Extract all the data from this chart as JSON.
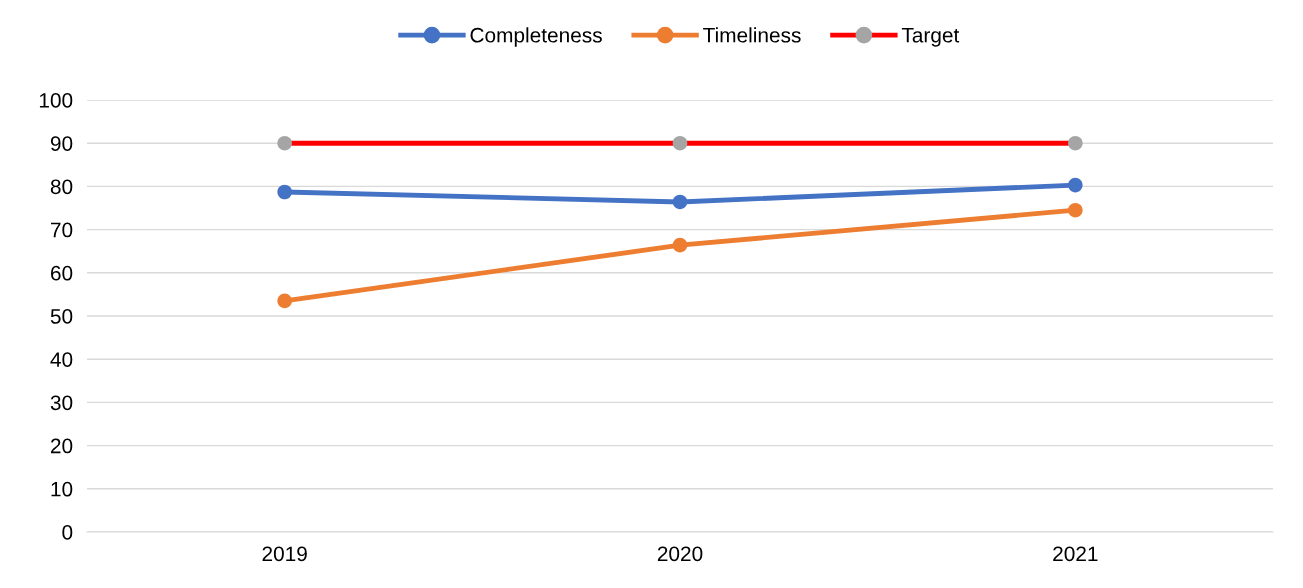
{
  "chart_data": {
    "type": "line",
    "categories": [
      "2019",
      "2020",
      "2021"
    ],
    "series": [
      {
        "name": "Completeness",
        "color": "#4472c4",
        "values": [
          78.7,
          76.4,
          80.3
        ]
      },
      {
        "name": "Timeliness",
        "color": "#ed7d31",
        "values": [
          53.5,
          66.4,
          74.5
        ]
      },
      {
        "name": "Target",
        "color": "#ff0000",
        "colors": [
          "#a5a5a5",
          "#a5a5a5",
          "#a5a5a5"
        ],
        "values": [
          90,
          90,
          90
        ]
      }
    ],
    "ylim": [
      0,
      100
    ],
    "yticks": [
      0,
      10,
      20,
      30,
      40,
      50,
      60,
      70,
      80,
      90,
      100
    ],
    "grid": "y",
    "legend": "top",
    "marker": "circle",
    "line_style": "solid"
  }
}
